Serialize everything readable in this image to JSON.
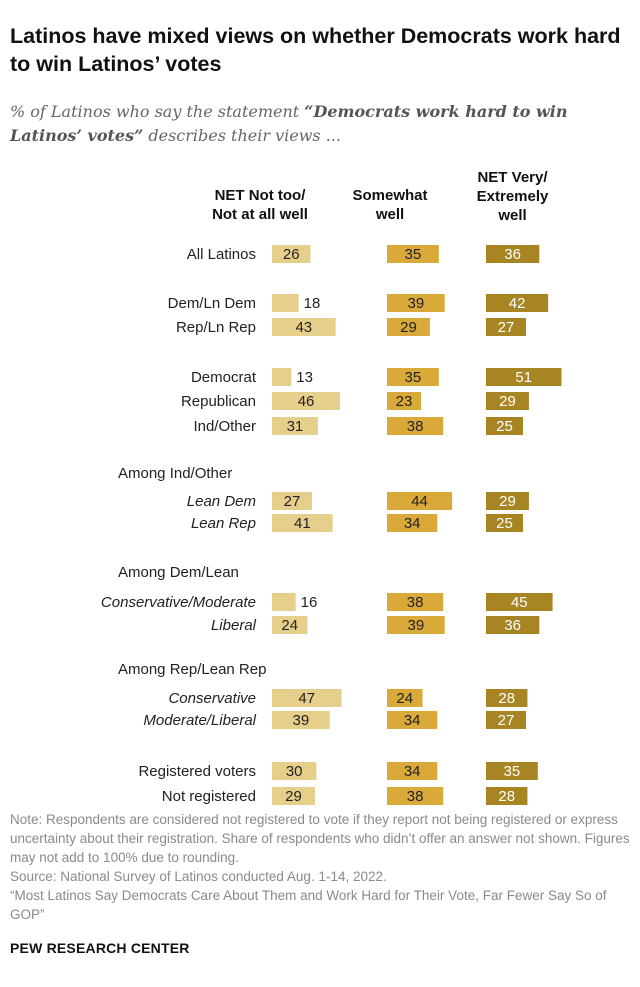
{
  "title": "Latinos have mixed views on whether Democrats work hard to win Latinos’ votes",
  "subtitle": {
    "pre": "% of Latinos who say the statement ",
    "quote": "“Democrats work hard to win Latinos’ votes”",
    "post": " describes their views ..."
  },
  "columns": [
    {
      "line1": "NET Not too/",
      "line2": "Not at all well",
      "line3": ""
    },
    {
      "line1": "Somewhat",
      "line2": "well",
      "line3": ""
    },
    {
      "line1": "NET Very/",
      "line2": "Extremely",
      "line3": "well"
    }
  ],
  "colors": {
    "not_well": "#e6cf8a",
    "somewhat": "#d9a93a",
    "very": "#a88523",
    "label_on_light": "#222222",
    "label_on_dark": "#ffffff"
  },
  "chart_data": {
    "type": "bar",
    "orientation": "horizontal",
    "layout": "three-panel grouped",
    "series": [
      {
        "name": "NET Not too/Not at all well",
        "values": [
          26,
          18,
          43,
          13,
          46,
          31,
          27,
          41,
          16,
          24,
          47,
          39,
          30,
          29
        ]
      },
      {
        "name": "Somewhat well",
        "values": [
          35,
          39,
          29,
          35,
          23,
          38,
          44,
          34,
          38,
          39,
          24,
          34,
          34,
          38
        ]
      },
      {
        "name": "NET Very/Extremely well",
        "values": [
          36,
          42,
          27,
          51,
          29,
          25,
          29,
          25,
          45,
          36,
          28,
          27,
          35,
          28
        ]
      }
    ],
    "headings": [
      "Among Ind/Other",
      "Among Dem/Lean",
      "Among Rep/Lean Rep"
    ],
    "rows": [
      {
        "label": "All Latinos",
        "italic": false
      },
      {
        "label": "Dem/Ln Dem",
        "italic": false
      },
      {
        "label": "Rep/Ln Rep",
        "italic": false
      },
      {
        "label": "Democrat",
        "italic": false
      },
      {
        "label": "Republican",
        "italic": false
      },
      {
        "label": "Ind/Other",
        "italic": false
      },
      {
        "label": "Lean Dem",
        "italic": true
      },
      {
        "label": "Lean Rep",
        "italic": true
      },
      {
        "label": "Conservative/Moderate",
        "italic": true
      },
      {
        "label": "Liberal",
        "italic": true
      },
      {
        "label": "Conservative",
        "italic": true
      },
      {
        "label": "Moderate/Liberal",
        "italic": true
      },
      {
        "label": "Registered voters",
        "italic": false
      },
      {
        "label": "Not registered",
        "italic": false
      }
    ],
    "xlim": [
      0,
      100
    ]
  },
  "notes": [
    "Note: Respondents are considered not registered to vote if they report not being registered or express uncertainty about their registration. Share of respondents who didn’t offer an answer not shown. Figures may not add to 100% due to rounding.",
    "Source: National Survey of Latinos conducted Aug. 1-14, 2022.",
    "“Most Latinos Say Democrats Care About Them and Work Hard for Their Vote, Far Fewer Say So of GOP”"
  ],
  "brand": "PEW RESEARCH CENTER"
}
